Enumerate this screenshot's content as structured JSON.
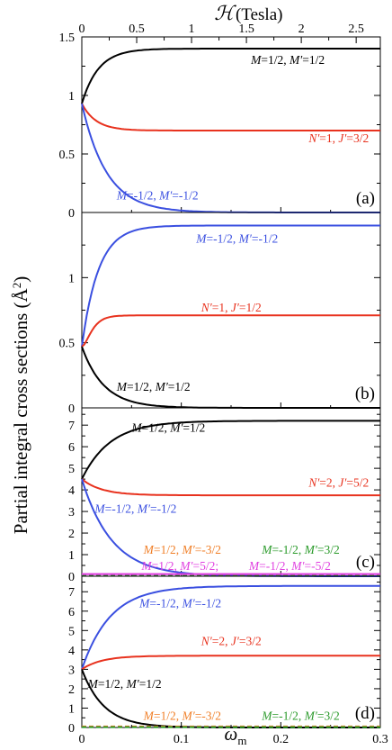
{
  "figure": {
    "ylabel": "Partial integral cross sections (Å",
    "ylabel_sup": "2",
    "ylabel_close": ")",
    "top_axis_label_symbol": "ℋ",
    "top_axis_label_unit": " (Tesla)",
    "xlabel_main": "ω",
    "xlabel_sub": "m"
  },
  "top_axis": {
    "ticks": [
      0,
      0.5,
      1,
      1.5,
      2,
      2.5
    ],
    "tick_labels": [
      "0",
      "0.5",
      "1",
      "1.5",
      "2",
      "2.5"
    ],
    "range": [
      0,
      2.72
    ]
  },
  "chart_data": [
    {
      "type": "line",
      "panel_label": "(a)",
      "xlim": [
        0,
        0.3
      ],
      "ylim": [
        0,
        1.5
      ],
      "yticks": [
        0,
        0.5,
        1,
        1.5
      ],
      "ytick_labels": [
        "0",
        "0.5",
        "1",
        "1.5"
      ],
      "series": [
        {
          "name": "M=1/2, M′=1/2",
          "color": "#000000",
          "start": 0.93,
          "end": 1.4,
          "k": 60,
          "label_parts": [
            {
              "t": "M",
              "i": true
            },
            {
              "t": "=1/2, ",
              "i": false
            },
            {
              "t": "M′",
              "i": true
            },
            {
              "t": "=1/2",
              "i": false
            }
          ],
          "label_at": [
            0.17,
            1.27
          ]
        },
        {
          "name": "N′=1, J′=3/2",
          "color": "#e8321e",
          "start": 0.93,
          "end": 0.7,
          "k": 70,
          "label_parts": [
            {
              "t": "N′",
              "i": true
            },
            {
              "t": "=1, ",
              "i": false
            },
            {
              "t": "J′",
              "i": true
            },
            {
              "t": "=3/2",
              "i": false
            }
          ],
          "label_at": [
            0.228,
            0.6
          ]
        },
        {
          "name": "M=-1/2, M′=-1/2",
          "color": "#3a4fe0",
          "start": 0.93,
          "end": 0.0,
          "k": 40,
          "label_parts": [
            {
              "t": "M",
              "i": true
            },
            {
              "t": "=-1/2, ",
              "i": false
            },
            {
              "t": "M′",
              "i": true
            },
            {
              "t": "=-1/2",
              "i": false
            }
          ],
          "label_at": [
            0.035,
            0.11
          ]
        }
      ]
    },
    {
      "type": "line",
      "panel_label": "(b)",
      "xlim": [
        0,
        0.3
      ],
      "ylim": [
        0,
        1.5
      ],
      "yticks": [
        0,
        0.5,
        1,
        1.5
      ],
      "ytick_labels": [
        "0",
        "0.5",
        "1",
        ""
      ],
      "series": [
        {
          "name": "M=-1/2, M′=-1/2",
          "color": "#3a4fe0",
          "start": 0.47,
          "end": 1.4,
          "k": 60,
          "label_parts": [
            {
              "t": "M",
              "i": true
            },
            {
              "t": "=-1/2, ",
              "i": false
            },
            {
              "t": "M′",
              "i": true
            },
            {
              "t": "=-1/2",
              "i": false
            }
          ],
          "label_at": [
            0.115,
            1.27
          ]
        },
        {
          "name": "N′=1, J′=1/2",
          "color": "#e8321e",
          "start": 0.47,
          "end": 0.71,
          "k": 70,
          "sigmoid": true,
          "label_parts": [
            {
              "t": "N′",
              "i": true
            },
            {
              "t": "=1, ",
              "i": false
            },
            {
              "t": "J′",
              "i": true
            },
            {
              "t": "=1/2",
              "i": false
            }
          ],
          "label_at": [
            0.12,
            0.74
          ]
        },
        {
          "name": "M=1/2, M′=1/2",
          "color": "#000000",
          "start": 0.47,
          "end": 0.0,
          "k": 45,
          "label_parts": [
            {
              "t": "M",
              "i": true
            },
            {
              "t": "=1/2, ",
              "i": false
            },
            {
              "t": "M′",
              "i": true
            },
            {
              "t": "=1/2",
              "i": false
            }
          ],
          "label_at": [
            0.035,
            0.13
          ]
        }
      ]
    },
    {
      "type": "line",
      "panel_label": "(c)",
      "xlim": [
        0,
        0.3
      ],
      "ylim": [
        0,
        7.8
      ],
      "yticks": [
        0,
        1,
        2,
        3,
        4,
        5,
        6,
        7
      ],
      "ytick_labels": [
        "0",
        "1",
        "2",
        "3",
        "4",
        "5",
        "6",
        "7"
      ],
      "series": [
        {
          "name": "M=1/2, M′=1/2",
          "color": "#000000",
          "start": 4.5,
          "end": 7.2,
          "k": 35,
          "label_parts": [
            {
              "t": "M",
              "i": true
            },
            {
              "t": "=1/2, ",
              "i": false
            },
            {
              "t": "M′",
              "i": true
            },
            {
              "t": "=1/2",
              "i": false
            }
          ],
          "label_at": [
            0.05,
            6.7
          ]
        },
        {
          "name": "N′=2, J′=5/2",
          "color": "#e8321e",
          "start": 4.5,
          "end": 3.75,
          "k": 50,
          "label_parts": [
            {
              "t": "N′",
              "i": true
            },
            {
              "t": "=2, ",
              "i": false
            },
            {
              "t": "J′",
              "i": true
            },
            {
              "t": "=5/2",
              "i": false
            }
          ],
          "label_at": [
            0.228,
            4.15
          ]
        },
        {
          "name": "M=-1/2, M′=-1/2",
          "color": "#3a4fe0",
          "start": 4.5,
          "end": 0.0,
          "k": 33,
          "label_parts": [
            {
              "t": "M",
              "i": true
            },
            {
              "t": "=-1/2, ",
              "i": false
            },
            {
              "t": "M′",
              "i": true
            },
            {
              "t": "=-1/2",
              "i": false
            }
          ],
          "label_at": [
            0.013,
            2.95
          ]
        },
        {
          "name": "M=1/2, M′=-3/2",
          "color": "#f07e26",
          "start": 0.05,
          "end": 0.05,
          "k": 50,
          "dashed": true,
          "label_parts": [
            {
              "t": "M",
              "i": true
            },
            {
              "t": "=1/2, ",
              "i": false
            },
            {
              "t": "M′",
              "i": true
            },
            {
              "t": "=-3/2",
              "i": false
            }
          ],
          "label_at": [
            0.062,
            1.05
          ]
        },
        {
          "name": "M=-1/2, M′=3/2",
          "color": "#2a9a2a",
          "start": 0.02,
          "end": 0.02,
          "k": 50,
          "dashed": true,
          "label_parts": [
            {
              "t": "M",
              "i": true
            },
            {
              "t": "=-1/2, ",
              "i": false
            },
            {
              "t": "M′",
              "i": true
            },
            {
              "t": "=3/2",
              "i": false
            }
          ],
          "label_at": [
            0.181,
            1.05
          ]
        },
        {
          "name": "M=1/2, M′=5/2",
          "color": "#e040e0",
          "start": 0.1,
          "end": 0.1,
          "k": 50,
          "label_parts": [
            {
              "t": "M",
              "i": true
            },
            {
              "t": "=1/2, ",
              "i": false
            },
            {
              "t": "M′",
              "i": true
            },
            {
              "t": "=5/2;",
              "i": false
            }
          ],
          "label_at": [
            0.06,
            0.3
          ]
        },
        {
          "name": "M=-1/2, M′=-5/2",
          "color": "#e040e0",
          "start": 0.1,
          "end": 0.1,
          "k": 50,
          "label_parts": [
            {
              "t": "M",
              "i": true
            },
            {
              "t": "=-1/2, ",
              "i": false
            },
            {
              "t": "M′",
              "i": true
            },
            {
              "t": "=-5/2",
              "i": false
            }
          ],
          "label_at": [
            0.168,
            0.3
          ]
        }
      ]
    },
    {
      "type": "line",
      "panel_label": "(d)",
      "xlim": [
        0,
        0.3
      ],
      "ylim": [
        0,
        7.8
      ],
      "yticks": [
        0,
        1,
        2,
        3,
        4,
        5,
        6,
        7
      ],
      "ytick_labels": [
        "0",
        "1",
        "2",
        "3",
        "4",
        "5",
        "6",
        "7"
      ],
      "xticks": [
        0,
        0.1,
        0.2,
        0.3
      ],
      "xtick_labels": [
        "0",
        "0.1",
        "0.2",
        "0.3"
      ],
      "series": [
        {
          "name": "M=-1/2, M′=-1/2",
          "color": "#3a4fe0",
          "start": 3.0,
          "end": 7.3,
          "k": 35,
          "label_parts": [
            {
              "t": "M",
              "i": true
            },
            {
              "t": "=-1/2, ",
              "i": false
            },
            {
              "t": "M′",
              "i": true
            },
            {
              "t": "=-1/2",
              "i": false
            }
          ],
          "label_at": [
            0.058,
            6.2
          ]
        },
        {
          "name": "N′=2, J′=3/2",
          "color": "#e8321e",
          "start": 3.0,
          "end": 3.7,
          "k": 50,
          "label_parts": [
            {
              "t": "N′",
              "i": true
            },
            {
              "t": "=2, ",
              "i": false
            },
            {
              "t": "J′",
              "i": true
            },
            {
              "t": "=3/2",
              "i": false
            }
          ],
          "label_at": [
            0.12,
            4.25
          ]
        },
        {
          "name": "M=1/2, M′=1/2",
          "color": "#000000",
          "start": 3.0,
          "end": 0.0,
          "k": 45,
          "label_parts": [
            {
              "t": "M",
              "i": true
            },
            {
              "t": "=1/2, ",
              "i": false
            },
            {
              "t": "M′",
              "i": true
            },
            {
              "t": "=1/2",
              "i": false
            }
          ],
          "label_at": [
            0.006,
            2.05
          ]
        },
        {
          "name": "M=1/2, M′=-3/2",
          "color": "#f07e26",
          "start": 0.05,
          "end": 0.05,
          "k": 50,
          "dashed": true,
          "label_parts": [
            {
              "t": "M",
              "i": true
            },
            {
              "t": "=1/2, ",
              "i": false
            },
            {
              "t": "M′",
              "i": true
            },
            {
              "t": "=-3/2",
              "i": false
            }
          ],
          "label_at": [
            0.062,
            0.4
          ]
        },
        {
          "name": "M=-1/2, M′=3/2",
          "color": "#2a9a2a",
          "start": 0.02,
          "end": 0.02,
          "k": 50,
          "dashed": true,
          "label_parts": [
            {
              "t": "M",
              "i": true
            },
            {
              "t": "=-1/2, ",
              "i": false
            },
            {
              "t": "M′",
              "i": true
            },
            {
              "t": "=3/2",
              "i": false
            }
          ],
          "label_at": [
            0.181,
            0.4
          ]
        }
      ]
    }
  ]
}
